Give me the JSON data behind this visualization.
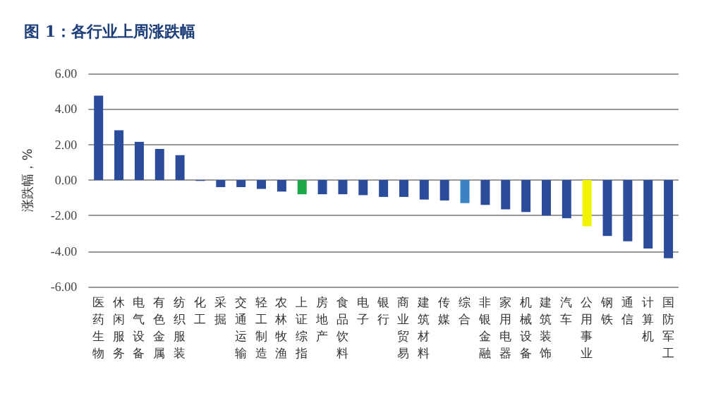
{
  "chart_data": {
    "type": "bar",
    "title": "图 1：各行业上周涨跌幅",
    "ylabel": "涨跌幅，%",
    "categories": [
      "医药生物",
      "休闲服务",
      "电气设备",
      "有色金属",
      "纺织服装",
      "化工",
      "采掘",
      "交通运输",
      "轻工制造",
      "农林牧渔",
      "上证综指",
      "房地产",
      "食品饮料",
      "电子",
      "银行",
      "商业贸易",
      "建筑材料",
      "传媒",
      "综合",
      "非银金融",
      "家用电器",
      "机械设备",
      "建筑装饰",
      "汽车",
      "公用事业",
      "钢铁",
      "通信",
      "计算机",
      "国防军工"
    ],
    "values": [
      4.75,
      2.8,
      2.15,
      1.75,
      1.4,
      -0.05,
      -0.4,
      -0.4,
      -0.5,
      -0.65,
      -0.8,
      -0.8,
      -0.8,
      -0.85,
      -0.95,
      -0.95,
      -1.1,
      -1.15,
      -1.3,
      -1.4,
      -1.65,
      -1.8,
      -2,
      -2.15,
      -2.6,
      -3.15,
      -3.45,
      -3.85,
      -4.4
    ],
    "colors": [
      "#2b4c9b",
      "#2b4c9b",
      "#2b4c9b",
      "#2b4c9b",
      "#2b4c9b",
      "#2b4c9b",
      "#2b4c9b",
      "#2b4c9b",
      "#2b4c9b",
      "#2b4c9b",
      "#1fa84a",
      "#2b4c9b",
      "#2b4c9b",
      "#2b4c9b",
      "#2b4c9b",
      "#2b4c9b",
      "#2b4c9b",
      "#2b4c9b",
      "#3b82c4",
      "#2b4c9b",
      "#2b4c9b",
      "#2b4c9b",
      "#2b4c9b",
      "#2b4c9b",
      "#f2f200",
      "#2b4c9b",
      "#2b4c9b",
      "#2b4c9b",
      "#2b4c9b"
    ],
    "ylim": [
      -6,
      6
    ],
    "yticks": [
      {
        "value": -6,
        "label": "-6.00"
      },
      {
        "value": -4,
        "label": "-4.00"
      },
      {
        "value": -2,
        "label": "-2.00"
      },
      {
        "value": 0,
        "label": "0.00"
      },
      {
        "value": 2,
        "label": "2.00"
      },
      {
        "value": 4,
        "label": "4.00"
      },
      {
        "value": 6,
        "label": "6.00"
      }
    ],
    "grid": "y"
  }
}
